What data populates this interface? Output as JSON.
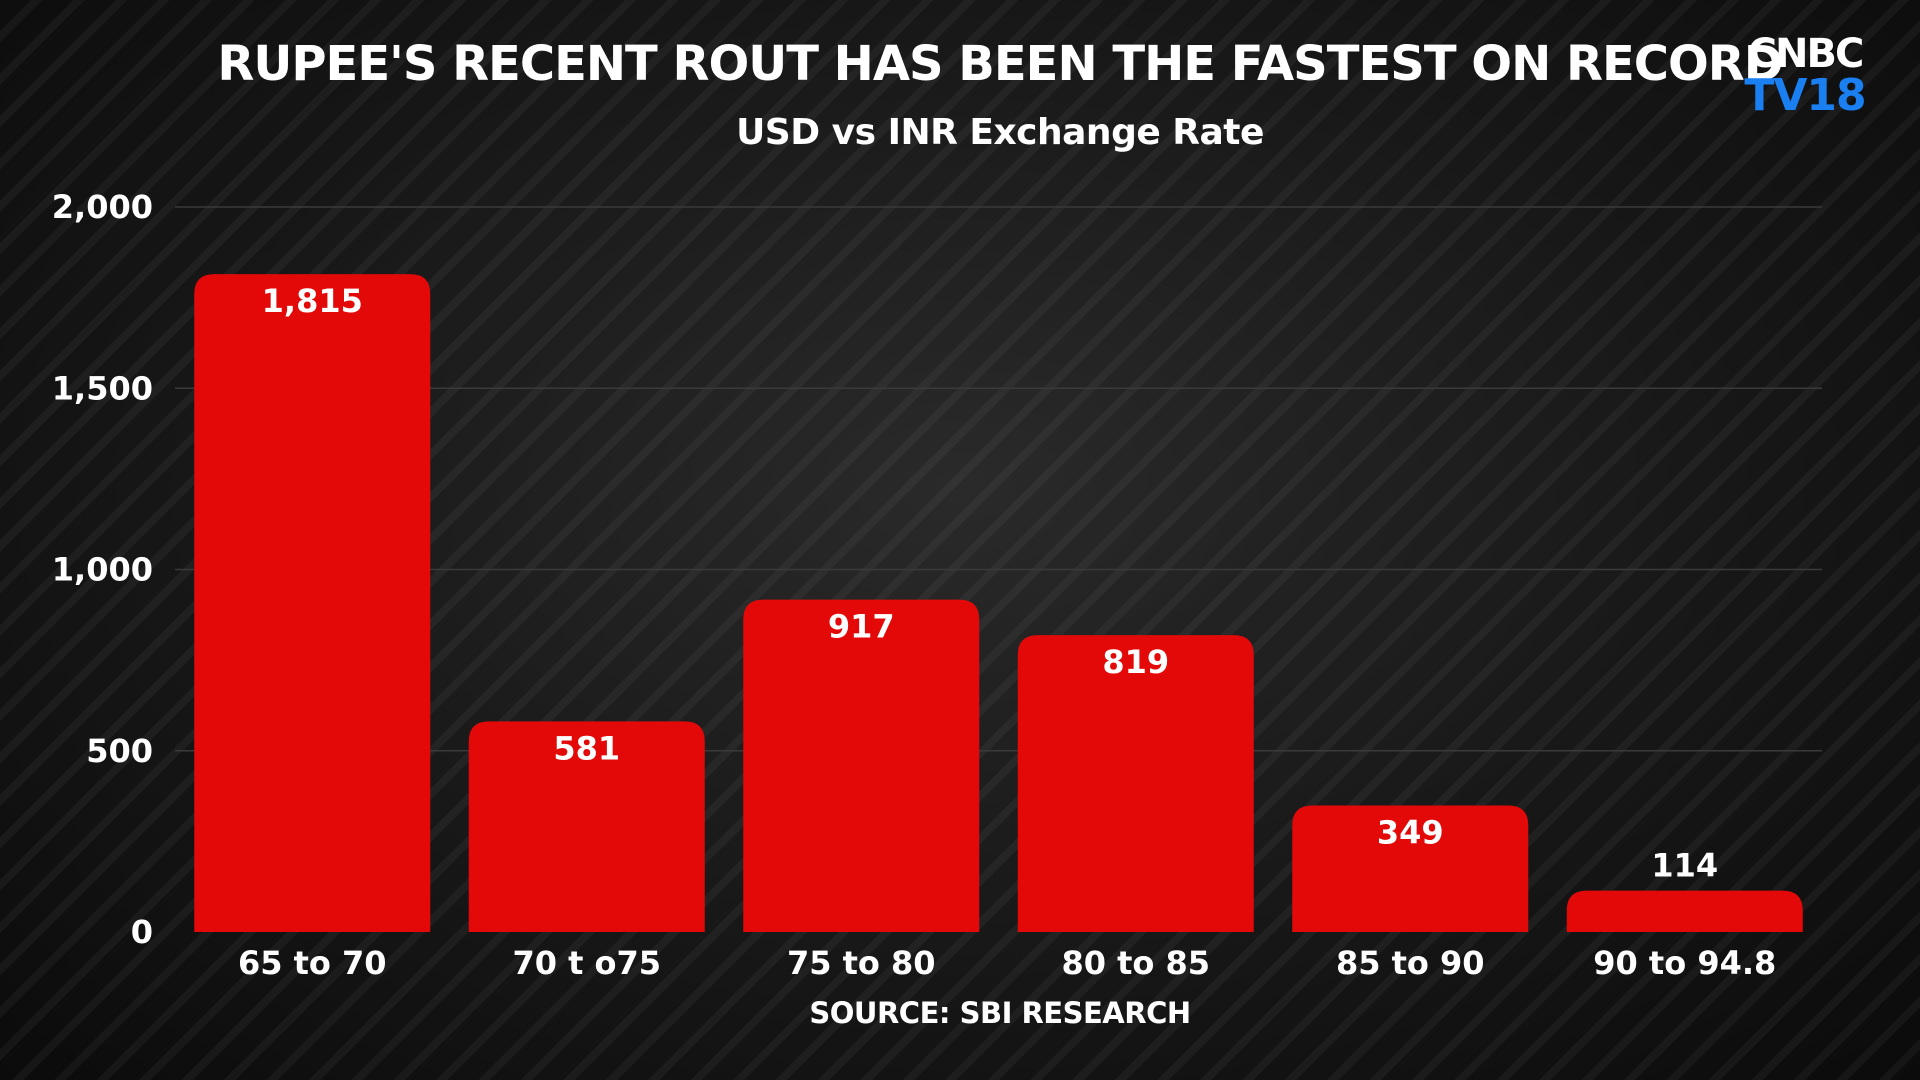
{
  "header": {
    "title": "RUPEE'S RECENT ROUT HAS BEEN THE FASTEST ON RECORD",
    "subtitle": "USD vs INR Exchange Rate"
  },
  "logo": {
    "top_text": "CNBC",
    "bottom_text": "TV18",
    "top_color": "#ffffff",
    "bottom_color": "#1a7ff0"
  },
  "footer": {
    "source": "SOURCE: SBI RESEARCH"
  },
  "colors": {
    "bar": "#e30909",
    "background": "#151515",
    "gridline": "#3a3a3a",
    "text": "#ffffff"
  },
  "chart_data": {
    "type": "bar",
    "title": "RUPEE'S RECENT ROUT HAS BEEN THE FASTEST ON RECORD",
    "subtitle": "USD vs INR Exchange Rate",
    "xlabel": "",
    "ylabel": "",
    "categories": [
      "65 to 70",
      "70 t o75",
      "75 to 80",
      "80 to 85",
      "85 to 90",
      "90 to 94.8"
    ],
    "values": [
      1815,
      581,
      917,
      819,
      349,
      114
    ],
    "data_labels": [
      "1,815",
      "581",
      "917",
      "819",
      "349",
      "114"
    ],
    "ylim": [
      0,
      2000
    ],
    "y_ticks": [
      0,
      500,
      1000,
      1500,
      2000
    ],
    "y_tick_labels": [
      "0",
      "500",
      "1,000",
      "1,500",
      "2,000"
    ],
    "grid": true,
    "legend": "none"
  }
}
